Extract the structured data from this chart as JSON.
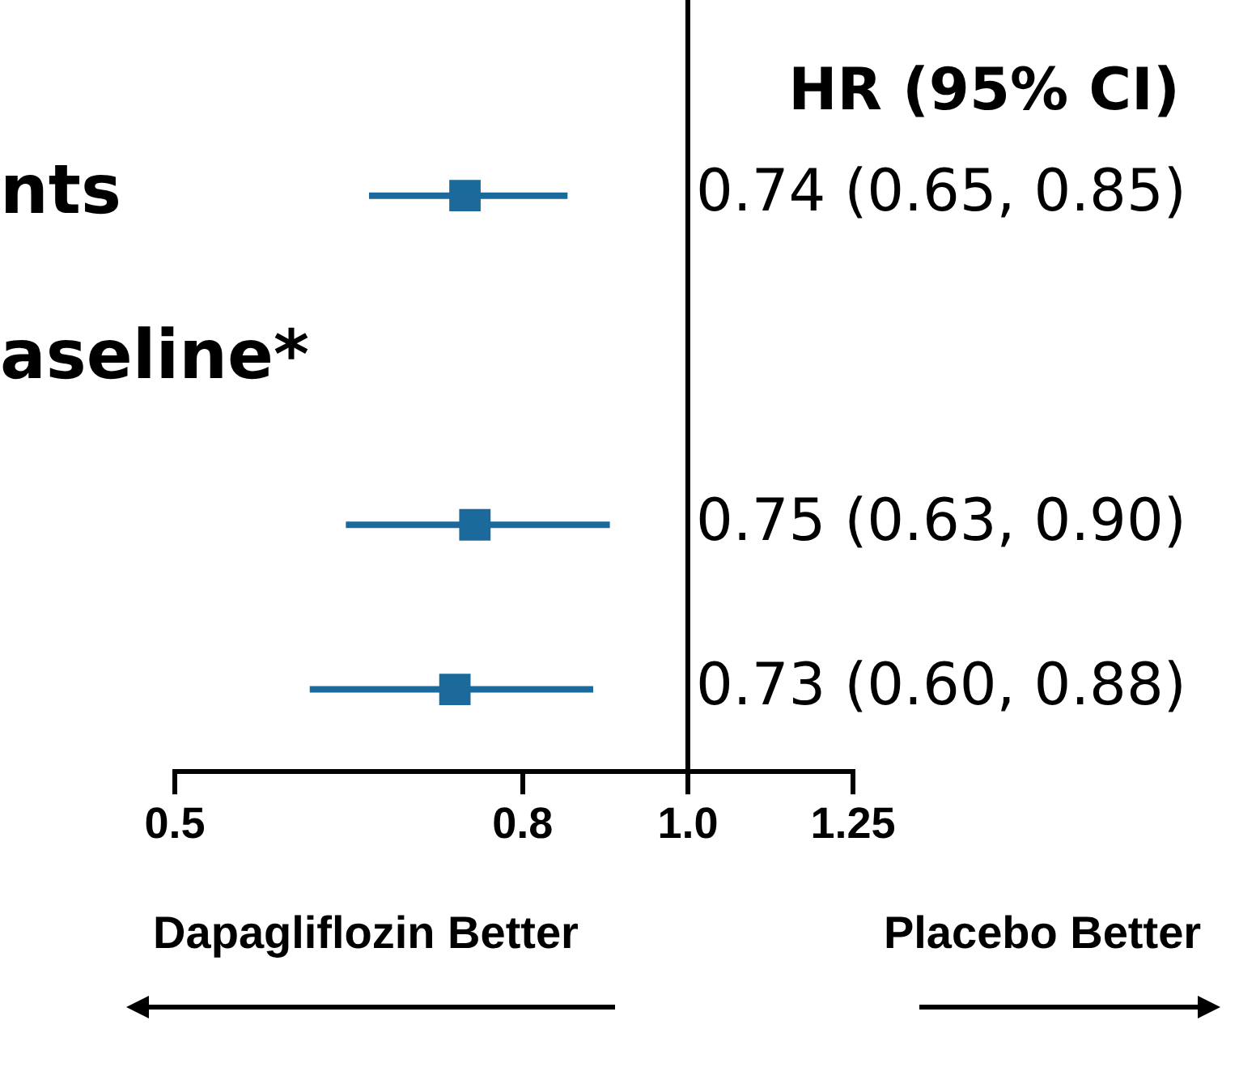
{
  "chart_data": {
    "type": "scatter",
    "orientation": "horizontal",
    "categories": [
      "nts",
      "aseline*",
      null,
      null
    ],
    "values": [
      0.74,
      null,
      0.75,
      0.73
    ],
    "errors": [
      [
        0.65,
        0.85
      ],
      null,
      [
        0.63,
        0.9
      ],
      [
        0.6,
        0.88
      ]
    ],
    "value_labels": [
      "0.74 (0.65, 0.85)",
      null,
      "0.75 (0.63, 0.90)",
      "0.73 (0.60, 0.88)"
    ],
    "color": "#1b6a9b",
    "marker": "square",
    "log": "x",
    "grid": false,
    "legend": false,
    "xlim": [
      0.5,
      1.25
    ],
    "xticks": [
      {
        "value": 0.5,
        "label": "0.5"
      },
      {
        "value": 0.8,
        "label": "0.8"
      },
      {
        "value": 1.0,
        "label": "1.0"
      },
      {
        "value": 1.25,
        "label": "1.25"
      }
    ],
    "ref_lines": [
      {
        "axis": "x",
        "value": 1.0,
        "color": "#000000"
      }
    ],
    "annotations": [
      "HR (95% CI)",
      "Dapagliflozin Better",
      "Placebo Better"
    ]
  }
}
